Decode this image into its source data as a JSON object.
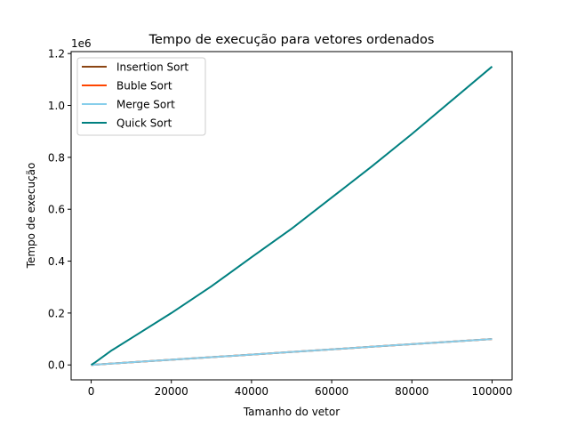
{
  "chart_data": {
    "type": "line",
    "title": "Tempo de execução para vetores ordenados",
    "xlabel": "Tamanho do vetor",
    "ylabel": "Tempo de execução",
    "offset_label": "1e6",
    "xlim": [
      -5000,
      105000
    ],
    "ylim": [
      -57500,
      1207500
    ],
    "x_ticks": [
      0,
      20000,
      40000,
      60000,
      80000,
      100000
    ],
    "x_tick_labels": [
      "0",
      "20000",
      "40000",
      "60000",
      "80000",
      "100000"
    ],
    "y_ticks": [
      0,
      200000,
      400000,
      600000,
      800000,
      1000000,
      1200000
    ],
    "y_tick_labels": [
      "0.0",
      "0.2",
      "0.4",
      "0.6",
      "0.8",
      "1.0",
      "1.2"
    ],
    "legend_position": "top-left",
    "grid": false,
    "series": [
      {
        "name": "Insertion Sort",
        "color": "#8b4513",
        "x": [
          0,
          10000,
          20000,
          30000,
          40000,
          50000,
          60000,
          70000,
          80000,
          90000,
          100000
        ],
        "y": [
          0,
          10000,
          20000,
          30000,
          40000,
          50000,
          60000,
          70000,
          80000,
          90000,
          100000
        ]
      },
      {
        "name": "Buble Sort",
        "color": "#ff4500",
        "x": [
          0,
          10000,
          20000,
          30000,
          40000,
          50000,
          60000,
          70000,
          80000,
          90000,
          100000
        ],
        "y": [
          0,
          10000,
          20000,
          30000,
          40000,
          50000,
          60000,
          70000,
          80000,
          90000,
          100000
        ]
      },
      {
        "name": "Merge Sort",
        "color": "#87ceeb",
        "x": [
          0,
          10000,
          20000,
          30000,
          40000,
          50000,
          60000,
          70000,
          80000,
          90000,
          100000
        ],
        "y": [
          0,
          10000,
          20000,
          30000,
          40000,
          50000,
          60000,
          70000,
          80000,
          90000,
          100000
        ]
      },
      {
        "name": "Quick Sort",
        "color": "#008080",
        "x": [
          0,
          1000,
          5000,
          10000,
          20000,
          30000,
          40000,
          50000,
          60000,
          70000,
          80000,
          90000,
          100000
        ],
        "y": [
          0,
          10000,
          55000,
          103000,
          200000,
          303000,
          415000,
          525000,
          645000,
          765000,
          890000,
          1020000,
          1150000
        ]
      }
    ]
  }
}
